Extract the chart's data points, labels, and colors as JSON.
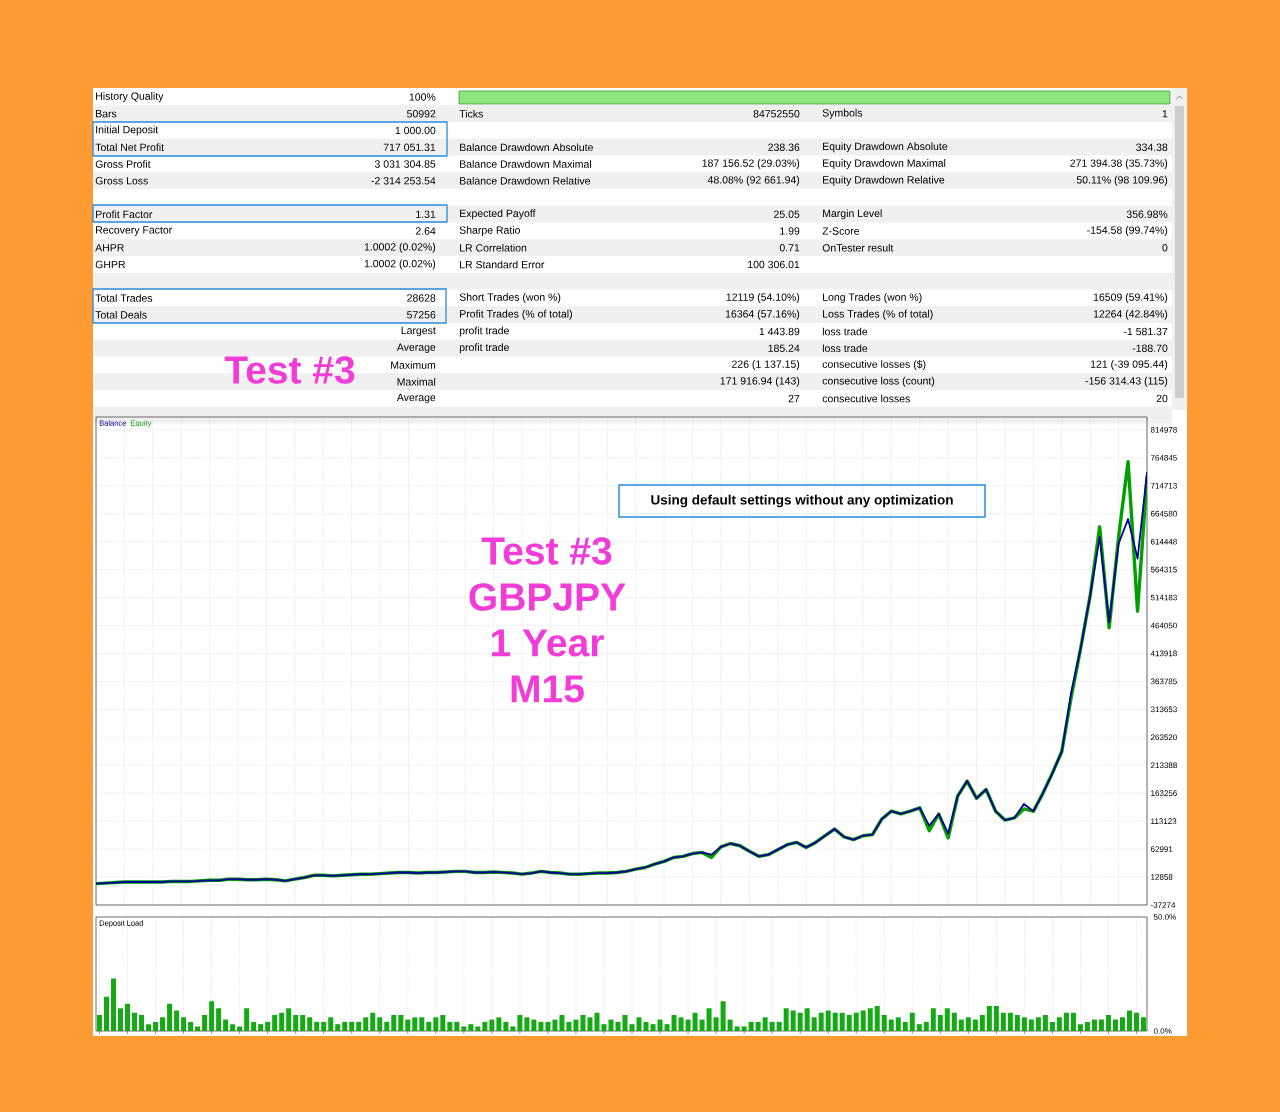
{
  "chart_data": [
    {
      "type": "other",
      "annotations": [
        "History Quality",
        "100%",
        "Bars",
        "50992",
        "Ticks",
        "84752550",
        "Symbols",
        "1",
        "Initial Deposit",
        "1 000.00",
        "Total Net Profit",
        "717 051.31",
        "Balance Drawdown Absolute",
        "238.36",
        "Equity Drawdown Absolute",
        "334.38",
        "Gross Profit",
        "3 031 304.85",
        "Balance Drawdown Maximal",
        "187 156.52 (29.03%)",
        "Equity Drawdown Maximal",
        "271 394.38 (35.73%)",
        "Gross Loss",
        "-2 314 253.54",
        "Balance Drawdown Relative",
        "48.08% (92 661.94)",
        "Equity Drawdown Relative",
        "50.11% (98 109.96)",
        "Profit Factor",
        "1.31",
        "Expected Payoff",
        "25.05",
        "Margin Level",
        "356.98%",
        "Recovery Factor",
        "2.64",
        "Sharpe Ratio",
        "1.99",
        "Z-Score",
        "-154.58 (99.74%)",
        "AHPR",
        "1.0002 (0.02%)",
        "LR Correlation",
        "0.71",
        "OnTester result",
        "0",
        "GHPR",
        "1.0002 (0.02%)",
        "LR Standard Error",
        "100 306.01",
        "Total Trades",
        "28628",
        "Short Trades (won %)",
        "12119 (54.10%)",
        "Long Trades (won %)",
        "16509 (59.41%)",
        "Total Deals",
        "57256",
        "Profit Trades (% of total)",
        "16364 (57.16%)",
        "Loss Trades (% of total)",
        "12264 (42.84%)",
        "Largest",
        "profit trade",
        "1 443.89",
        "loss trade",
        "-1 581.37",
        "Average",
        "profit trade",
        "185.24",
        "loss trade",
        "-188.70",
        "Maximum",
        "226 (1 137.15)",
        "consecutive losses ($)",
        "121 (-39 095.44)",
        "Maximal",
        "171 916.94 (143)",
        "consecutive loss (count)",
        "-156 314.43 (115)",
        "Average",
        "27",
        "consecutive losses",
        "20",
        "Test #3"
      ]
    },
    {
      "type": "line",
      "categories": [
        null,
        null,
        null,
        null,
        null,
        null,
        null,
        null,
        null,
        null,
        null,
        null,
        null,
        null,
        null,
        null,
        null,
        null,
        null,
        null,
        null,
        null,
        null,
        null,
        null,
        null,
        null,
        null,
        null,
        null,
        null,
        null,
        null,
        null,
        null,
        null,
        null,
        null,
        null,
        null,
        null,
        null,
        null,
        null,
        null,
        null,
        null,
        null,
        null,
        null,
        null,
        null,
        null,
        null,
        null,
        null,
        null,
        null,
        null,
        null,
        null,
        null,
        null,
        null,
        null,
        null,
        null,
        null,
        null,
        null,
        null,
        null,
        null,
        null,
        null,
        null,
        null,
        null,
        null,
        null,
        null,
        null,
        null,
        null,
        null,
        null,
        null,
        null,
        null,
        null,
        null,
        null,
        null,
        null,
        null,
        null,
        null,
        null,
        null,
        null,
        null,
        null,
        null,
        null,
        null,
        null,
        null,
        null,
        null,
        null,
        null,
        null
      ],
      "series": [
        {
          "name": "Balance",
          "color": "#000096",
          "values": [
            1000,
            2000,
            3000,
            4000,
            4000,
            4000,
            4000,
            4000,
            5000,
            5000,
            5000,
            6000,
            7000,
            7000,
            9000,
            9000,
            8000,
            8000,
            9000,
            8000,
            6000,
            9000,
            12000,
            16000,
            16000,
            15000,
            16000,
            17000,
            18000,
            18000,
            19000,
            20000,
            21000,
            21000,
            20000,
            21000,
            21000,
            22000,
            23000,
            23000,
            21000,
            21000,
            22000,
            21000,
            20000,
            18000,
            20000,
            23000,
            21000,
            20000,
            18000,
            18000,
            19000,
            20000,
            20000,
            21000,
            23000,
            27000,
            30000,
            36000,
            41000,
            48000,
            50000,
            55000,
            57000,
            53000,
            67000,
            73000,
            69000,
            59000,
            50000,
            53000,
            62000,
            71000,
            75000,
            66000,
            75000,
            87000,
            99000,
            85000,
            80000,
            87000,
            89000,
            117000,
            131000,
            126000,
            131000,
            137000,
            105000,
            126000,
            91000,
            158000,
            185000,
            154000,
            170000,
            131000,
            115000,
            119000,
            144000,
            131000,
            163000,
            199000,
            238000,
            344000,
            424000,
            518000,
            623000,
            470000,
            611000,
            655000,
            584000,
            738000
          ]
        },
        {
          "name": "Equity",
          "color": "#00A000",
          "values": [
            1000,
            2000,
            3000,
            4000,
            4000,
            4000,
            4000,
            4000,
            5000,
            5000,
            5000,
            6000,
            7000,
            7000,
            9000,
            9000,
            8000,
            8000,
            9000,
            8000,
            6000,
            9000,
            12000,
            16000,
            16000,
            15000,
            16000,
            17000,
            18000,
            18000,
            19000,
            20000,
            21000,
            21000,
            20000,
            21000,
            21000,
            22000,
            23000,
            23000,
            21000,
            21000,
            22000,
            21000,
            20000,
            18000,
            20000,
            23000,
            21000,
            20000,
            18000,
            18000,
            19000,
            20000,
            20000,
            21000,
            23000,
            27000,
            30000,
            36000,
            41000,
            48000,
            50000,
            55000,
            57000,
            48000,
            67000,
            73000,
            69000,
            59000,
            50000,
            53000,
            62000,
            71000,
            75000,
            66000,
            75000,
            87000,
            99000,
            85000,
            80000,
            87000,
            89000,
            117000,
            131000,
            126000,
            131000,
            137000,
            96000,
            126000,
            83000,
            158000,
            185000,
            154000,
            170000,
            131000,
            115000,
            119000,
            135000,
            131000,
            163000,
            199000,
            238000,
            336000,
            424000,
            518000,
            641000,
            460000,
            623000,
            758000,
            490000,
            730000
          ]
        }
      ],
      "ylim": [
        -37274,
        838000
      ],
      "yticks": [
        -37274,
        12858,
        62991,
        113123,
        163256,
        213388,
        263520,
        313653,
        363785,
        413918,
        464050,
        514183,
        564315,
        614448,
        664580,
        714713,
        764845,
        814978
      ],
      "grid": true,
      "legend": "top left",
      "annotations": [
        "Using default settings without any optimization",
        "Test #3",
        "GBPJPY",
        "1 Year",
        "M15"
      ]
    },
    {
      "type": "bar",
      "title": "Deposit Load",
      "categories": [
        null,
        null,
        null,
        null,
        null,
        null,
        null,
        null,
        null,
        null,
        null,
        null,
        null,
        null,
        null,
        null,
        null,
        null,
        null,
        null,
        null,
        null,
        null,
        null,
        null,
        null,
        null,
        null,
        null,
        null,
        null,
        null,
        null,
        null,
        null,
        null,
        null,
        null,
        null,
        null,
        null,
        null,
        null,
        null,
        null,
        null,
        null,
        null,
        null,
        null,
        null,
        null,
        null,
        null,
        null,
        null,
        null,
        null,
        null,
        null,
        null,
        null,
        null,
        null,
        null,
        null,
        null,
        null,
        null,
        null,
        null,
        null,
        null,
        null,
        null,
        null,
        null,
        null,
        null,
        null,
        null,
        null,
        null,
        null,
        null,
        null,
        null,
        null,
        null,
        null,
        null,
        null,
        null,
        null,
        null,
        null,
        null,
        null,
        null,
        null,
        null,
        null,
        null,
        null,
        null,
        null,
        null,
        null,
        null,
        null,
        null,
        null,
        null,
        null,
        null,
        null,
        null,
        null,
        null,
        null,
        null,
        null,
        null,
        null,
        null,
        null,
        null,
        null,
        null,
        null,
        null,
        null,
        null,
        null,
        null,
        null,
        null,
        null,
        null,
        null,
        null,
        null,
        null,
        null,
        null,
        null,
        null,
        null,
        null,
        null
      ],
      "values": [
        7,
        15,
        23,
        10,
        12,
        8,
        7,
        3,
        4,
        6,
        12,
        9,
        6,
        4,
        2,
        7,
        13,
        10,
        5,
        3,
        2,
        10,
        4,
        3,
        4,
        7,
        8,
        10,
        7,
        7,
        6,
        4,
        4,
        6,
        3,
        4,
        4,
        4,
        6,
        8,
        6,
        4,
        7,
        7,
        5,
        6,
        6,
        4,
        6,
        7,
        4,
        4,
        2,
        3,
        2,
        4,
        5,
        6,
        4,
        2,
        7,
        6,
        5,
        4,
        4,
        5,
        7,
        4,
        5,
        7,
        6,
        8,
        3,
        5,
        4,
        7,
        3,
        6,
        4,
        3,
        5,
        3,
        7,
        6,
        5,
        8,
        5,
        10,
        6,
        13,
        5,
        2,
        2,
        4,
        4,
        6,
        4,
        4,
        10,
        9,
        8,
        10,
        6,
        8,
        9,
        8,
        8,
        7,
        8,
        9,
        10,
        11,
        7,
        5,
        6,
        4,
        8,
        3,
        4,
        10,
        7,
        10,
        8,
        5,
        6,
        5,
        7,
        11,
        11,
        8,
        8,
        7,
        6,
        5,
        6,
        7,
        4,
        6,
        8,
        8,
        3,
        4,
        5,
        5,
        7,
        5,
        6,
        9,
        8,
        6
      ],
      "color": "#14AA14",
      "ylim": [
        0,
        50
      ],
      "yticks": [
        {
          "value": 0,
          "label": "0.0%"
        },
        {
          "value": 50,
          "label": "50.0%"
        }
      ],
      "grid": "x"
    }
  ]
}
